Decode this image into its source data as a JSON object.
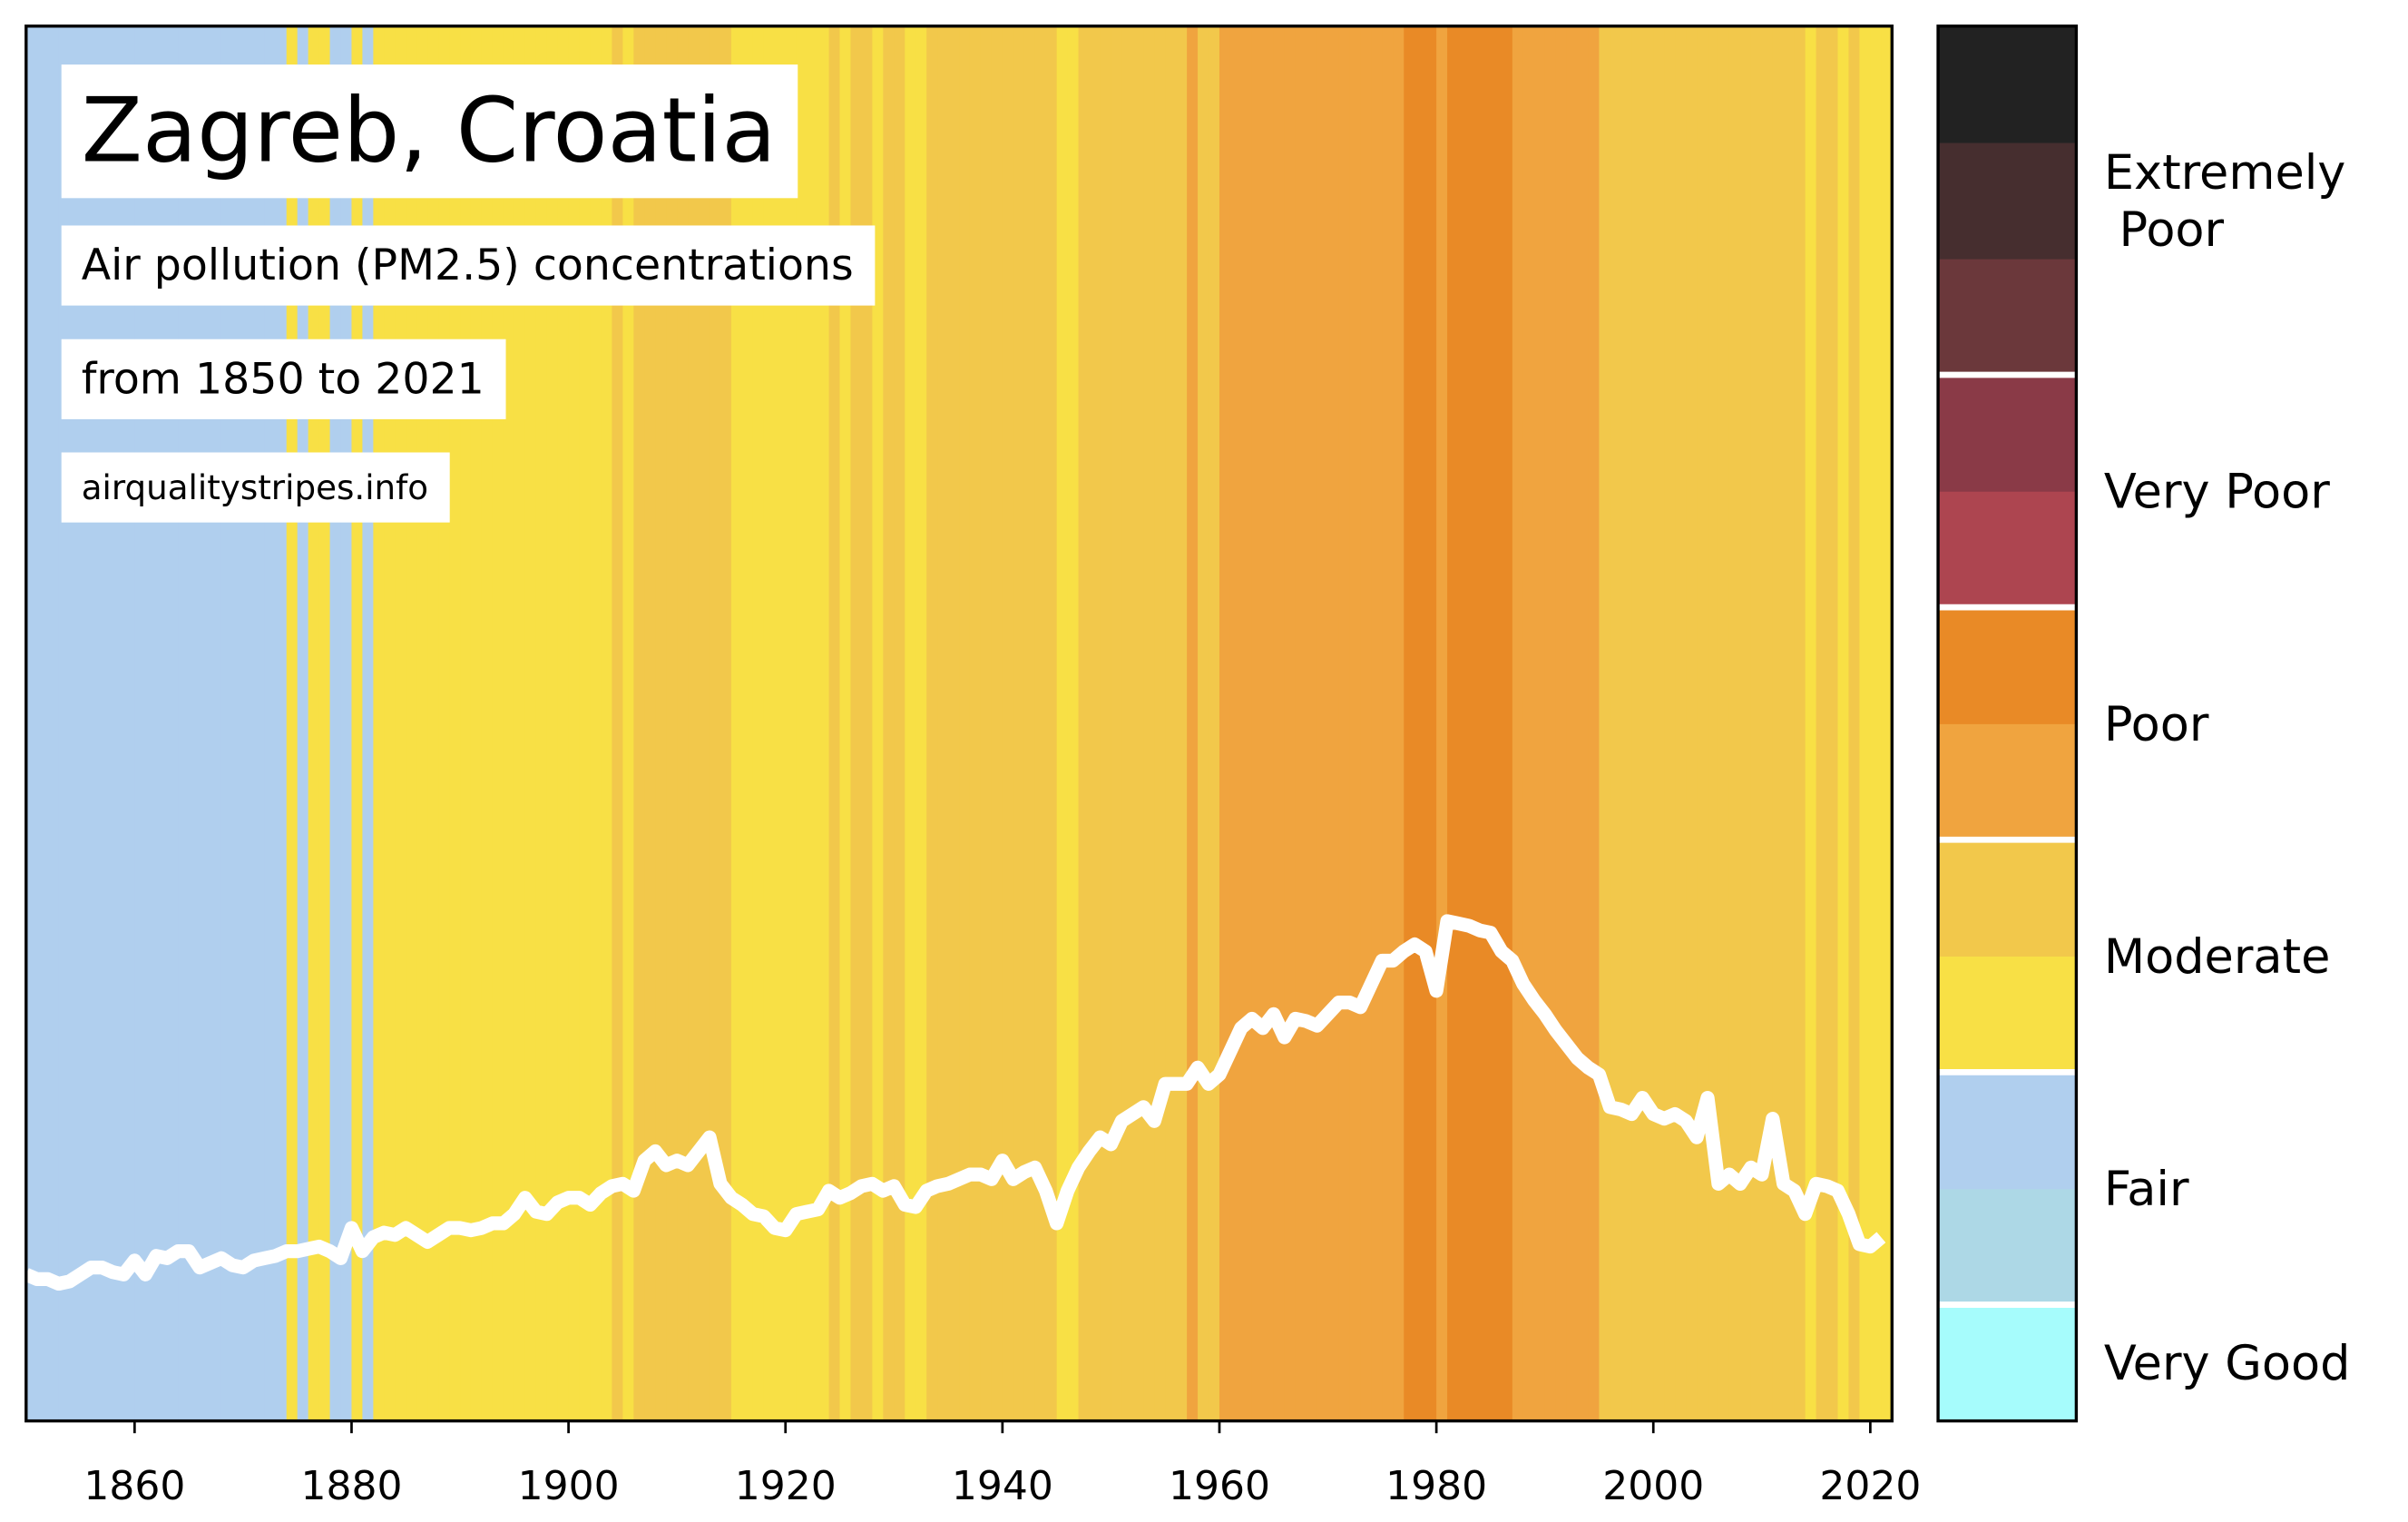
{
  "chart_data": {
    "type": "stripes",
    "title": "Zagreb, Croatia",
    "subtitle": "Air pollution (PM2.5) concentrations",
    "period": "from 1850 to 2021",
    "source": "airqualitystripes.info",
    "x": [
      1850,
      1851,
      1852,
      1853,
      1854,
      1855,
      1856,
      1857,
      1858,
      1859,
      1860,
      1861,
      1862,
      1863,
      1864,
      1865,
      1866,
      1867,
      1868,
      1869,
      1870,
      1871,
      1872,
      1873,
      1874,
      1875,
      1876,
      1877,
      1878,
      1879,
      1880,
      1881,
      1882,
      1883,
      1884,
      1885,
      1886,
      1887,
      1888,
      1889,
      1890,
      1891,
      1892,
      1893,
      1894,
      1895,
      1896,
      1897,
      1898,
      1899,
      1900,
      1901,
      1902,
      1903,
      1904,
      1905,
      1906,
      1907,
      1908,
      1909,
      1910,
      1911,
      1912,
      1913,
      1914,
      1915,
      1916,
      1917,
      1918,
      1919,
      1920,
      1921,
      1922,
      1923,
      1924,
      1925,
      1926,
      1927,
      1928,
      1929,
      1930,
      1931,
      1932,
      1933,
      1934,
      1935,
      1936,
      1937,
      1938,
      1939,
      1940,
      1941,
      1942,
      1943,
      1944,
      1945,
      1946,
      1947,
      1948,
      1949,
      1950,
      1951,
      1952,
      1953,
      1954,
      1955,
      1956,
      1957,
      1958,
      1959,
      1960,
      1961,
      1962,
      1963,
      1964,
      1965,
      1966,
      1967,
      1968,
      1969,
      1970,
      1971,
      1972,
      1973,
      1974,
      1975,
      1976,
      1977,
      1978,
      1979,
      1980,
      1981,
      1982,
      1983,
      1984,
      1985,
      1986,
      1987,
      1988,
      1989,
      1990,
      1991,
      1992,
      1993,
      1994,
      1995,
      1996,
      1997,
      1998,
      1999,
      2000,
      2001,
      2002,
      2003,
      2004,
      2005,
      2006,
      2007,
      2008,
      2009,
      2010,
      2011,
      2012,
      2013,
      2014,
      2015,
      2016,
      2017,
      2018,
      2019,
      2020,
      2021
    ],
    "values": [
      6.3,
      6.1,
      6.1,
      5.9,
      6.0,
      6.3,
      6.6,
      6.6,
      6.4,
      6.3,
      6.9,
      6.3,
      7.1,
      7.0,
      7.3,
      7.3,
      6.6,
      6.8,
      7.0,
      6.7,
      6.6,
      6.9,
      7.0,
      7.1,
      7.3,
      7.3,
      7.4,
      7.5,
      7.3,
      7.0,
      8.3,
      7.3,
      7.9,
      8.1,
      8.0,
      8.3,
      8.0,
      7.7,
      8.0,
      8.3,
      8.3,
      8.2,
      8.3,
      8.5,
      8.5,
      8.9,
      9.6,
      9.0,
      8.9,
      9.4,
      9.6,
      9.6,
      9.3,
      9.8,
      10.1,
      10.2,
      9.9,
      11.2,
      11.6,
      11.0,
      11.2,
      11.0,
      11.6,
      12.2,
      10.2,
      9.6,
      9.3,
      8.9,
      8.8,
      8.3,
      8.2,
      8.9,
      9.0,
      9.1,
      9.9,
      9.6,
      9.8,
      10.1,
      10.2,
      9.9,
      10.1,
      9.3,
      9.2,
      9.9,
      10.1,
      10.2,
      10.4,
      10.6,
      10.6,
      10.4,
      11.2,
      10.4,
      10.7,
      10.9,
      9.9,
      8.5,
      9.9,
      10.9,
      11.6,
      12.2,
      11.9,
      12.9,
      13.2,
      13.5,
      12.9,
      14.5,
      14.5,
      14.5,
      15.2,
      14.5,
      14.9,
      15.9,
      16.9,
      17.3,
      16.9,
      17.5,
      16.5,
      17.3,
      17.2,
      17.0,
      17.5,
      18.0,
      18.0,
      17.8,
      18.8,
      19.8,
      19.8,
      20.2,
      20.5,
      20.2,
      18.5,
      21.5,
      21.4,
      21.3,
      21.1,
      21.0,
      20.2,
      19.8,
      18.8,
      18.1,
      17.5,
      16.8,
      16.2,
      15.6,
      15.2,
      14.9,
      13.5,
      13.4,
      13.2,
      13.9,
      13.2,
      13.0,
      13.2,
      12.9,
      12.2,
      13.9,
      10.2,
      10.6,
      10.2,
      10.9,
      10.6,
      13.0,
      10.2,
      9.9,
      8.9,
      10.2,
      10.1,
      9.9,
      8.9,
      7.6,
      7.5,
      7.9
    ],
    "line_color": "#ffffff",
    "stripe_levels": [
      2,
      2,
      2,
      2,
      2,
      2,
      2,
      2,
      2,
      2,
      2,
      2,
      2,
      2,
      2,
      2,
      2,
      2,
      2,
      2,
      2,
      2,
      2,
      2,
      3,
      2,
      3,
      3,
      2,
      2,
      3,
      2,
      3,
      3,
      3,
      3,
      3,
      3,
      3,
      3,
      3,
      3,
      3,
      3,
      3,
      3,
      3,
      3,
      3,
      3,
      3,
      3,
      3,
      3,
      4,
      3,
      4,
      4,
      4,
      4,
      4,
      4,
      4,
      4,
      4,
      3,
      3,
      3,
      3,
      3,
      3,
      3,
      3,
      3,
      4,
      3,
      4,
      4,
      3,
      4,
      4,
      3,
      3,
      4,
      4,
      4,
      4,
      4,
      4,
      4,
      4,
      4,
      4,
      4,
      4,
      3,
      3,
      4,
      4,
      4,
      4,
      4,
      4,
      4,
      4,
      4,
      4,
      5,
      4,
      4,
      5,
      5,
      5,
      5,
      5,
      5,
      5,
      5,
      5,
      5,
      5,
      5,
      5,
      5,
      5,
      5,
      5,
      6,
      6,
      6,
      5,
      6,
      6,
      6,
      6,
      6,
      6,
      5,
      5,
      5,
      5,
      5,
      5,
      5,
      5,
      4,
      4,
      4,
      4,
      4,
      4,
      4,
      4,
      4,
      4,
      4,
      4,
      4,
      4,
      4,
      4,
      4,
      4,
      4,
      3,
      4,
      4,
      3,
      4,
      3,
      3,
      3
    ],
    "xlim": [
      1850,
      2022
    ],
    "xticks": [
      1860,
      1880,
      1900,
      1920,
      1940,
      1960,
      1980,
      2000,
      2020
    ],
    "ylim": [
      0,
      60
    ],
    "colorbar": {
      "colors": [
        "#a6fcfc",
        "#add8e6",
        "#b0cfee",
        "#f8e045",
        "#f2c84b",
        "#f0a43f",
        "#e98a26",
        "#ad4550",
        "#8a3a47",
        "#6b383b",
        "#462e2f",
        "#222222"
      ],
      "groups": [
        {
          "label": "Very Good",
          "levels": 1
        },
        {
          "label": "Fair",
          "levels": 2
        },
        {
          "label": "Moderate",
          "levels": 2
        },
        {
          "label": "Poor",
          "levels": 2
        },
        {
          "label": "Very Poor",
          "levels": 2
        },
        {
          "label": "Extremely Poor",
          "levels": 3
        }
      ]
    }
  }
}
